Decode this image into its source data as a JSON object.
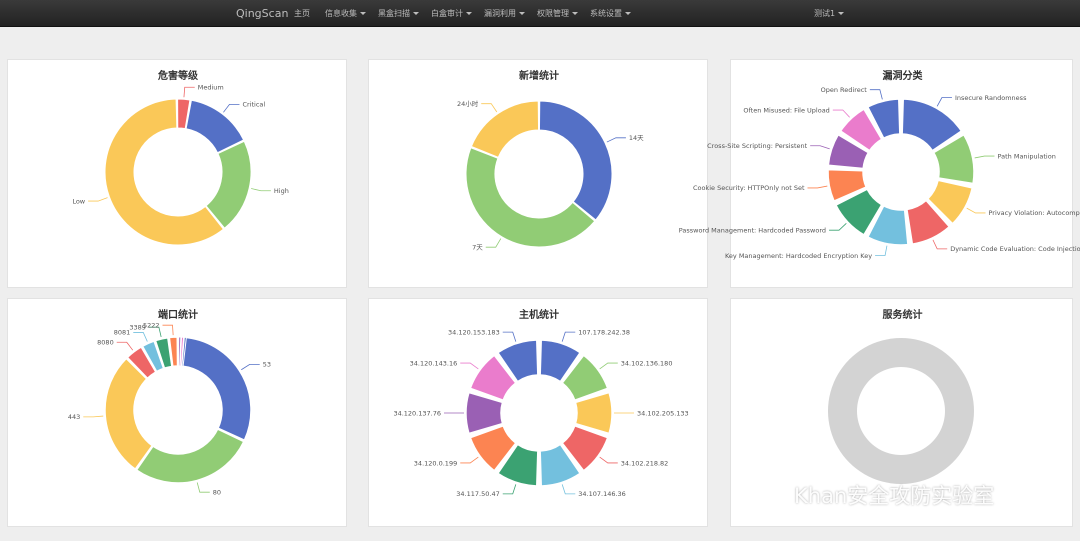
{
  "navbar": {
    "brand": "QingScan",
    "items": [
      {
        "label": "主页",
        "dropdown": false
      },
      {
        "label": "信息收集",
        "dropdown": true
      },
      {
        "label": "黑盒扫描",
        "dropdown": true
      },
      {
        "label": "白盒审计",
        "dropdown": true
      },
      {
        "label": "漏洞利用",
        "dropdown": true
      },
      {
        "label": "权限管理",
        "dropdown": true
      },
      {
        "label": "系统设置",
        "dropdown": true
      }
    ],
    "user": "测试1"
  },
  "palette": [
    "#5470c6",
    "#91cc75",
    "#fac858",
    "#ee6666",
    "#73c0de",
    "#3ba272",
    "#fc8452",
    "#9a60b4",
    "#ea7ccc"
  ],
  "watermark": "Khan安全攻防实验室",
  "chart_data": [
    {
      "type": "pie",
      "title": "危害等级",
      "start_angle": 10,
      "labels": [
        "Critical",
        "High",
        "Low",
        "Medium"
      ],
      "values": [
        15,
        21,
        60,
        3
      ],
      "colors": [
        "#5470c6",
        "#91cc75",
        "#fac858",
        "#ee6666"
      ]
    },
    {
      "type": "pie",
      "title": "新增统计",
      "start_angle": 0,
      "labels": [
        "14天",
        "7天",
        "24小时"
      ],
      "values": [
        36,
        45,
        19
      ],
      "colors": [
        "#5470c6",
        "#91cc75",
        "#fac858"
      ]
    },
    {
      "type": "pie",
      "title": "漏洞分类",
      "start_angle": 0,
      "labels": [
        "Insecure Randomness",
        "Path Manipulation",
        "Privacy Violation: Autocompl",
        "Dynamic Code Evaluation: Code Injection",
        "Key Management: Hardcoded Encryption Key",
        "Password Management: Hardcoded Password",
        "Cookie Security: HTTPOnly not Set",
        "Cross-Site Scripting: Persistent",
        "Often Misused: File Upload",
        "Open Redirect"
      ],
      "values": [
        16,
        12,
        10,
        10,
        10,
        10,
        8,
        8,
        8,
        8
      ],
      "colors": [
        "#5470c6",
        "#91cc75",
        "#fac858",
        "#ee6666",
        "#73c0de",
        "#3ba272",
        "#fc8452",
        "#9a60b4",
        "#ea7ccc",
        "#5470c6"
      ]
    },
    {
      "type": "pie",
      "title": "端口统计",
      "start_angle": 0,
      "labels": [
        "53",
        "80",
        "443",
        "8080",
        "8081",
        "3389",
        "5222"
      ],
      "values": [
        31,
        27,
        27,
        4,
        3,
        3,
        2
      ],
      "hidden_slices": 3,
      "colors": [
        "#5470c6",
        "#91cc75",
        "#fac858",
        "#ee6666",
        "#73c0de",
        "#3ba272",
        "#fc8452",
        "#9a60b4",
        "#ea7ccc",
        "#5470c6"
      ]
    },
    {
      "type": "pie",
      "title": "主机统计",
      "start_angle": 0,
      "labels": [
        "107.178.242.38",
        "34.102.136.180",
        "34.102.205.133",
        "34.102.218.82",
        "34.107.146.36",
        "34.117.50.47",
        "34.120.0.199",
        "34.120.137.76",
        "34.120.143.16",
        "34.120.153.183"
      ],
      "values": [
        1,
        1,
        1,
        1,
        1,
        1,
        1,
        1,
        1,
        1
      ],
      "colors": [
        "#5470c6",
        "#91cc75",
        "#fac858",
        "#ee6666",
        "#73c0de",
        "#3ba272",
        "#fc8452",
        "#9a60b4",
        "#ea7ccc",
        "#5470c6"
      ]
    },
    {
      "type": "pie",
      "title": "服务统计",
      "start_angle": 0,
      "labels": [],
      "values": [],
      "colors": [
        "#d3d3d3"
      ]
    }
  ]
}
